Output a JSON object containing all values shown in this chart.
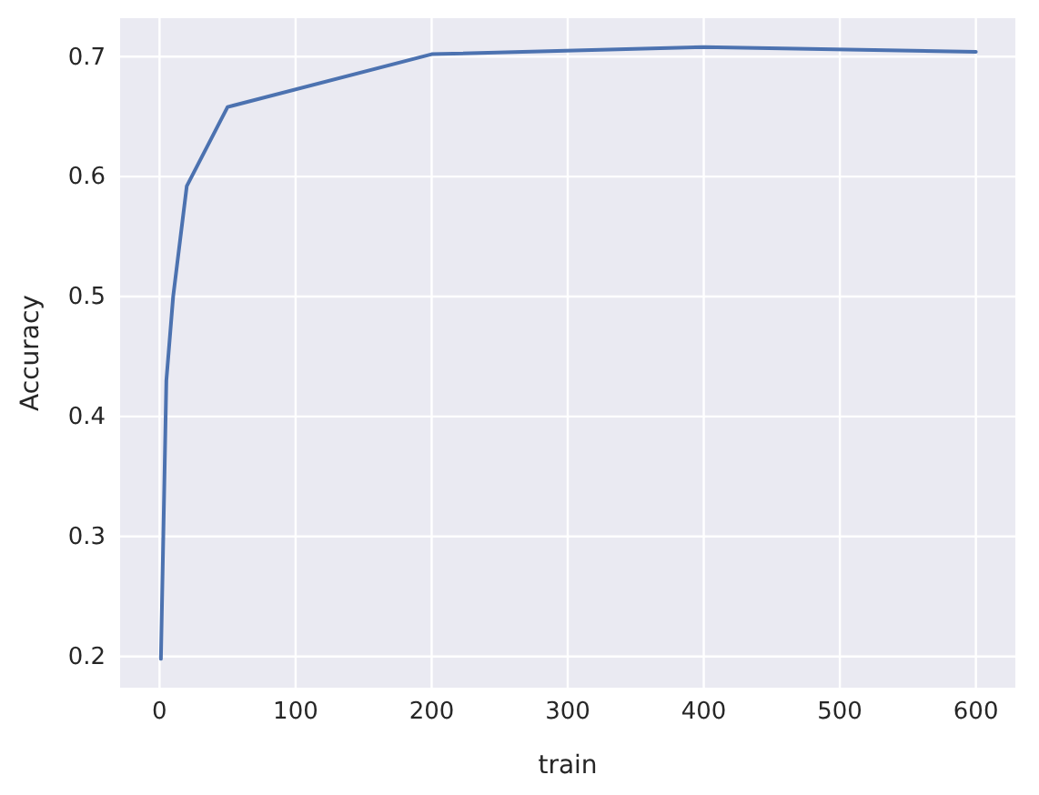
{
  "chart_data": {
    "type": "line",
    "xlabel": "train",
    "ylabel": "Accuracy",
    "x": [
      1,
      5,
      10,
      20,
      50,
      200,
      400,
      600
    ],
    "series": [
      {
        "color": "#4c72b0",
        "values": [
          0.198,
          0.43,
          0.5,
          0.592,
          0.658,
          0.702,
          0.708,
          0.704
        ]
      }
    ],
    "xlim": [
      -29,
      629
    ],
    "ylim": [
      0.174,
      0.732
    ],
    "xticks": [
      0,
      100,
      200,
      300,
      400,
      500,
      600
    ],
    "yticks": [
      0.2,
      0.3,
      0.4,
      0.5,
      0.6,
      0.7
    ],
    "grid": true,
    "marker": "none",
    "line_style": "solid"
  }
}
